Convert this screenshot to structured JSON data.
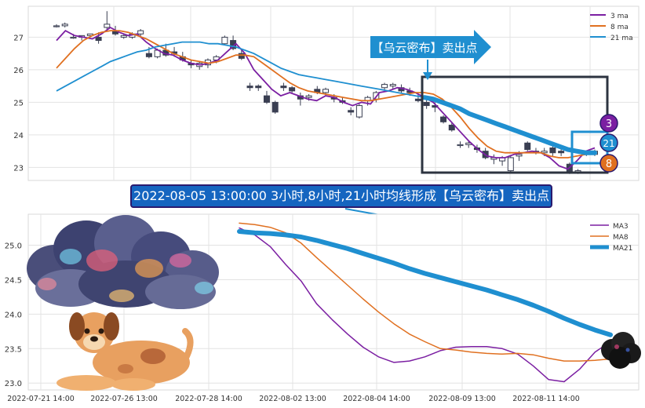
{
  "chart_data": [
    {
      "type": "candlestick",
      "panel": "top",
      "ylim": [
        22.6,
        27.95
      ],
      "yticks": [
        23,
        24,
        25,
        26,
        27
      ],
      "grid": true,
      "legend_position": "top-right",
      "series": [
        {
          "name": "3 ma",
          "color": "#7b1fa2",
          "values": [
            26.9,
            27.2,
            27.05,
            27.0,
            26.95,
            27.1,
            27.3,
            27.15,
            27.05,
            27.1,
            26.85,
            26.65,
            26.5,
            26.45,
            26.3,
            26.2,
            26.15,
            26.2,
            26.3,
            26.55,
            26.8,
            26.5,
            26.0,
            25.7,
            25.4,
            25.2,
            25.3,
            25.2,
            25.1,
            25.05,
            25.2,
            25.15,
            25.0,
            24.9,
            25.0,
            24.95,
            25.3,
            25.35,
            25.45,
            25.4,
            25.3,
            25.15,
            25.0,
            24.7,
            24.4,
            24.1,
            23.8,
            23.55,
            23.35,
            23.3,
            23.3,
            23.4,
            23.45,
            23.5,
            23.45,
            23.3,
            23.05,
            22.95,
            23.2,
            23.5,
            23.6
          ]
        },
        {
          "name": "8 ma",
          "color": "#e07020",
          "values": [
            26.05,
            26.35,
            26.65,
            26.9,
            27.05,
            27.15,
            27.2,
            27.2,
            27.15,
            27.05,
            26.95,
            26.8,
            26.65,
            26.5,
            26.4,
            26.3,
            26.25,
            26.2,
            26.25,
            26.35,
            26.45,
            26.45,
            26.4,
            26.2,
            26.0,
            25.8,
            25.6,
            25.45,
            25.35,
            25.3,
            25.25,
            25.2,
            25.15,
            25.1,
            25.05,
            25.05,
            25.1,
            25.15,
            25.2,
            25.25,
            25.3,
            25.3,
            25.25,
            25.1,
            24.85,
            24.55,
            24.2,
            23.9,
            23.65,
            23.5,
            23.45,
            23.45,
            23.45,
            23.45,
            23.45,
            23.35,
            23.3,
            23.3,
            23.35,
            23.4,
            23.45
          ]
        },
        {
          "name": "21 ma",
          "color": "#1f8fd0",
          "values": [
            25.35,
            25.5,
            25.65,
            25.8,
            25.95,
            26.1,
            26.25,
            26.35,
            26.45,
            26.55,
            26.6,
            26.7,
            26.75,
            26.8,
            26.85,
            26.85,
            26.85,
            26.8,
            26.8,
            26.75,
            26.7,
            26.6,
            26.5,
            26.35,
            26.2,
            26.05,
            25.95,
            25.85,
            25.8,
            25.75,
            25.7,
            25.65,
            25.6,
            25.55,
            25.5,
            25.45,
            25.4,
            25.35,
            25.3,
            25.25,
            25.2,
            25.15,
            25.1,
            25.0,
            24.9,
            24.8,
            24.65,
            24.55,
            24.45,
            24.35,
            24.25,
            24.15,
            24.05,
            23.95,
            23.85,
            23.75,
            23.65,
            23.55,
            23.5,
            23.45,
            23.45
          ]
        }
      ],
      "candles": [
        [
          27.35,
          27.4,
          27.3,
          27.35
        ],
        [
          27.35,
          27.45,
          27.3,
          27.4
        ],
        [
          27.0,
          27.1,
          26.95,
          27.0
        ],
        [
          27.0,
          27.05,
          26.9,
          27.05
        ],
        [
          27.05,
          27.1,
          27.0,
          27.1
        ],
        [
          27.0,
          27.15,
          26.8,
          26.9
        ],
        [
          27.3,
          27.8,
          27.2,
          27.4
        ],
        [
          27.2,
          27.35,
          27.05,
          27.1
        ],
        [
          27.0,
          27.1,
          26.95,
          27.05
        ],
        [
          27.0,
          27.15,
          26.95,
          27.1
        ],
        [
          27.1,
          27.25,
          27.0,
          27.2
        ],
        [
          26.5,
          26.7,
          26.35,
          26.4
        ],
        [
          26.4,
          26.65,
          26.35,
          26.6
        ],
        [
          26.6,
          26.8,
          26.4,
          26.45
        ],
        [
          26.55,
          26.7,
          26.4,
          26.5
        ],
        [
          26.4,
          26.55,
          26.25,
          26.3
        ],
        [
          26.2,
          26.3,
          26.05,
          26.15
        ],
        [
          26.1,
          26.25,
          26.0,
          26.2
        ],
        [
          26.15,
          26.35,
          26.05,
          26.3
        ],
        [
          26.3,
          26.45,
          26.2,
          26.4
        ],
        [
          26.8,
          27.05,
          26.75,
          27.0
        ],
        [
          26.9,
          27.05,
          26.6,
          26.65
        ],
        [
          26.5,
          26.6,
          26.3,
          26.35
        ],
        [
          25.5,
          25.6,
          25.35,
          25.45
        ],
        [
          25.5,
          25.55,
          25.35,
          25.45
        ],
        [
          25.2,
          25.35,
          24.95,
          25.0
        ],
        [
          25.0,
          25.05,
          24.65,
          24.7
        ],
        [
          25.5,
          25.6,
          25.35,
          25.45
        ],
        [
          25.45,
          25.5,
          25.3,
          25.35
        ],
        [
          25.2,
          25.3,
          24.9,
          25.1
        ],
        [
          25.15,
          25.25,
          25.05,
          25.2
        ],
        [
          25.4,
          25.5,
          25.25,
          25.3
        ],
        [
          25.3,
          25.45,
          25.2,
          25.4
        ],
        [
          25.15,
          25.25,
          25.0,
          25.1
        ],
        [
          25.05,
          25.15,
          24.95,
          25.0
        ],
        [
          24.75,
          24.85,
          24.6,
          24.7
        ],
        [
          24.55,
          24.95,
          24.5,
          24.9
        ],
        [
          25.05,
          25.2,
          24.9,
          25.15
        ],
        [
          25.1,
          25.35,
          25.0,
          25.3
        ],
        [
          25.45,
          25.6,
          25.35,
          25.55
        ],
        [
          25.5,
          25.6,
          25.4,
          25.55
        ],
        [
          25.45,
          25.55,
          25.3,
          25.35
        ],
        [
          25.35,
          25.45,
          25.2,
          25.3
        ],
        [
          25.1,
          25.25,
          25.0,
          25.05
        ],
        [
          25.0,
          25.1,
          24.8,
          24.9
        ],
        [
          24.9,
          25.0,
          24.7,
          24.85
        ],
        [
          24.55,
          24.6,
          24.35,
          24.4
        ],
        [
          24.3,
          24.4,
          24.1,
          24.15
        ],
        [
          23.7,
          23.8,
          23.6,
          23.7
        ],
        [
          23.7,
          23.8,
          23.6,
          23.75
        ],
        [
          23.6,
          23.7,
          23.45,
          23.55
        ],
        [
          23.5,
          23.6,
          23.25,
          23.3
        ],
        [
          23.25,
          23.4,
          23.1,
          23.3
        ],
        [
          23.2,
          23.35,
          23.05,
          23.3
        ],
        [
          22.9,
          23.35,
          22.85,
          23.3
        ],
        [
          23.35,
          23.5,
          23.2,
          23.4
        ],
        [
          23.75,
          23.8,
          23.5,
          23.55
        ],
        [
          23.5,
          23.6,
          23.4,
          23.5
        ],
        [
          23.45,
          23.6,
          23.35,
          23.5
        ],
        [
          23.6,
          23.7,
          23.35,
          23.45
        ],
        [
          23.5,
          23.6,
          23.35,
          23.45
        ],
        [
          23.1,
          23.15,
          22.8,
          22.85
        ],
        [
          22.85,
          22.95,
          22.8,
          22.9
        ],
        [
          23.4,
          23.5,
          23.35,
          23.45
        ],
        [
          23.4,
          23.55,
          23.35,
          23.5
        ]
      ]
    },
    {
      "type": "line",
      "panel": "bottom",
      "x_tick_labels": [
        "2022-07-21 14:00",
        "2022-07-26 13:00",
        "2022-07-28 14:00",
        "2022-08-02 13:00",
        "2022-08-04 14:00",
        "2022-08-09 13:00",
        "2022-08-11 14:00"
      ],
      "ylim": [
        22.9,
        25.45
      ],
      "yticks": [
        23.0,
        23.5,
        24.0,
        24.5,
        25.0
      ],
      "ytick_labels": [
        "23.0",
        "23.5",
        "24.0",
        "24.5",
        "25.0"
      ],
      "grid": true,
      "legend_position": "top-right",
      "series": [
        {
          "name": "MA3",
          "color": "#7b1fa2",
          "values": [
            25.25,
            25.15,
            24.98,
            24.72,
            24.48,
            24.15,
            23.92,
            23.71,
            23.52,
            23.38,
            23.3,
            23.32,
            23.38,
            23.47,
            23.52,
            23.53,
            23.53,
            23.5,
            23.42,
            23.25,
            23.05,
            23.02,
            23.2,
            23.45,
            23.6
          ]
        },
        {
          "name": "MA8",
          "color": "#e07020",
          "values": [
            25.32,
            25.3,
            25.26,
            25.18,
            25.03,
            24.82,
            24.62,
            24.42,
            24.22,
            24.03,
            23.86,
            23.71,
            23.6,
            23.5,
            23.48,
            23.45,
            23.43,
            23.42,
            23.43,
            23.41,
            23.36,
            23.32,
            23.32,
            23.33,
            23.35
          ]
        },
        {
          "name": "MA21",
          "color": "#1f8fd0",
          "values": [
            25.2,
            25.18,
            25.17,
            25.15,
            25.12,
            25.07,
            25.01,
            24.95,
            24.88,
            24.81,
            24.74,
            24.66,
            24.59,
            24.53,
            24.47,
            24.41,
            24.35,
            24.28,
            24.21,
            24.13,
            24.04,
            23.94,
            23.85,
            23.77,
            23.7
          ]
        }
      ]
    }
  ],
  "annotations": {
    "top_callout": "【乌云密布】卖出点",
    "banner": "2022-08-05 13:00:00 3小时,8小时,21小时均线形成【乌云密布】卖出点",
    "end_badges": [
      {
        "label": "3",
        "color": "#7b1fa2"
      },
      {
        "label": "21",
        "color": "#1f8fd0"
      },
      {
        "label": "8",
        "color": "#e07020"
      }
    ]
  },
  "decorations": [
    "storm-cloud-illustration",
    "dog-illustration",
    "dark-storm-cloud-icon"
  ]
}
